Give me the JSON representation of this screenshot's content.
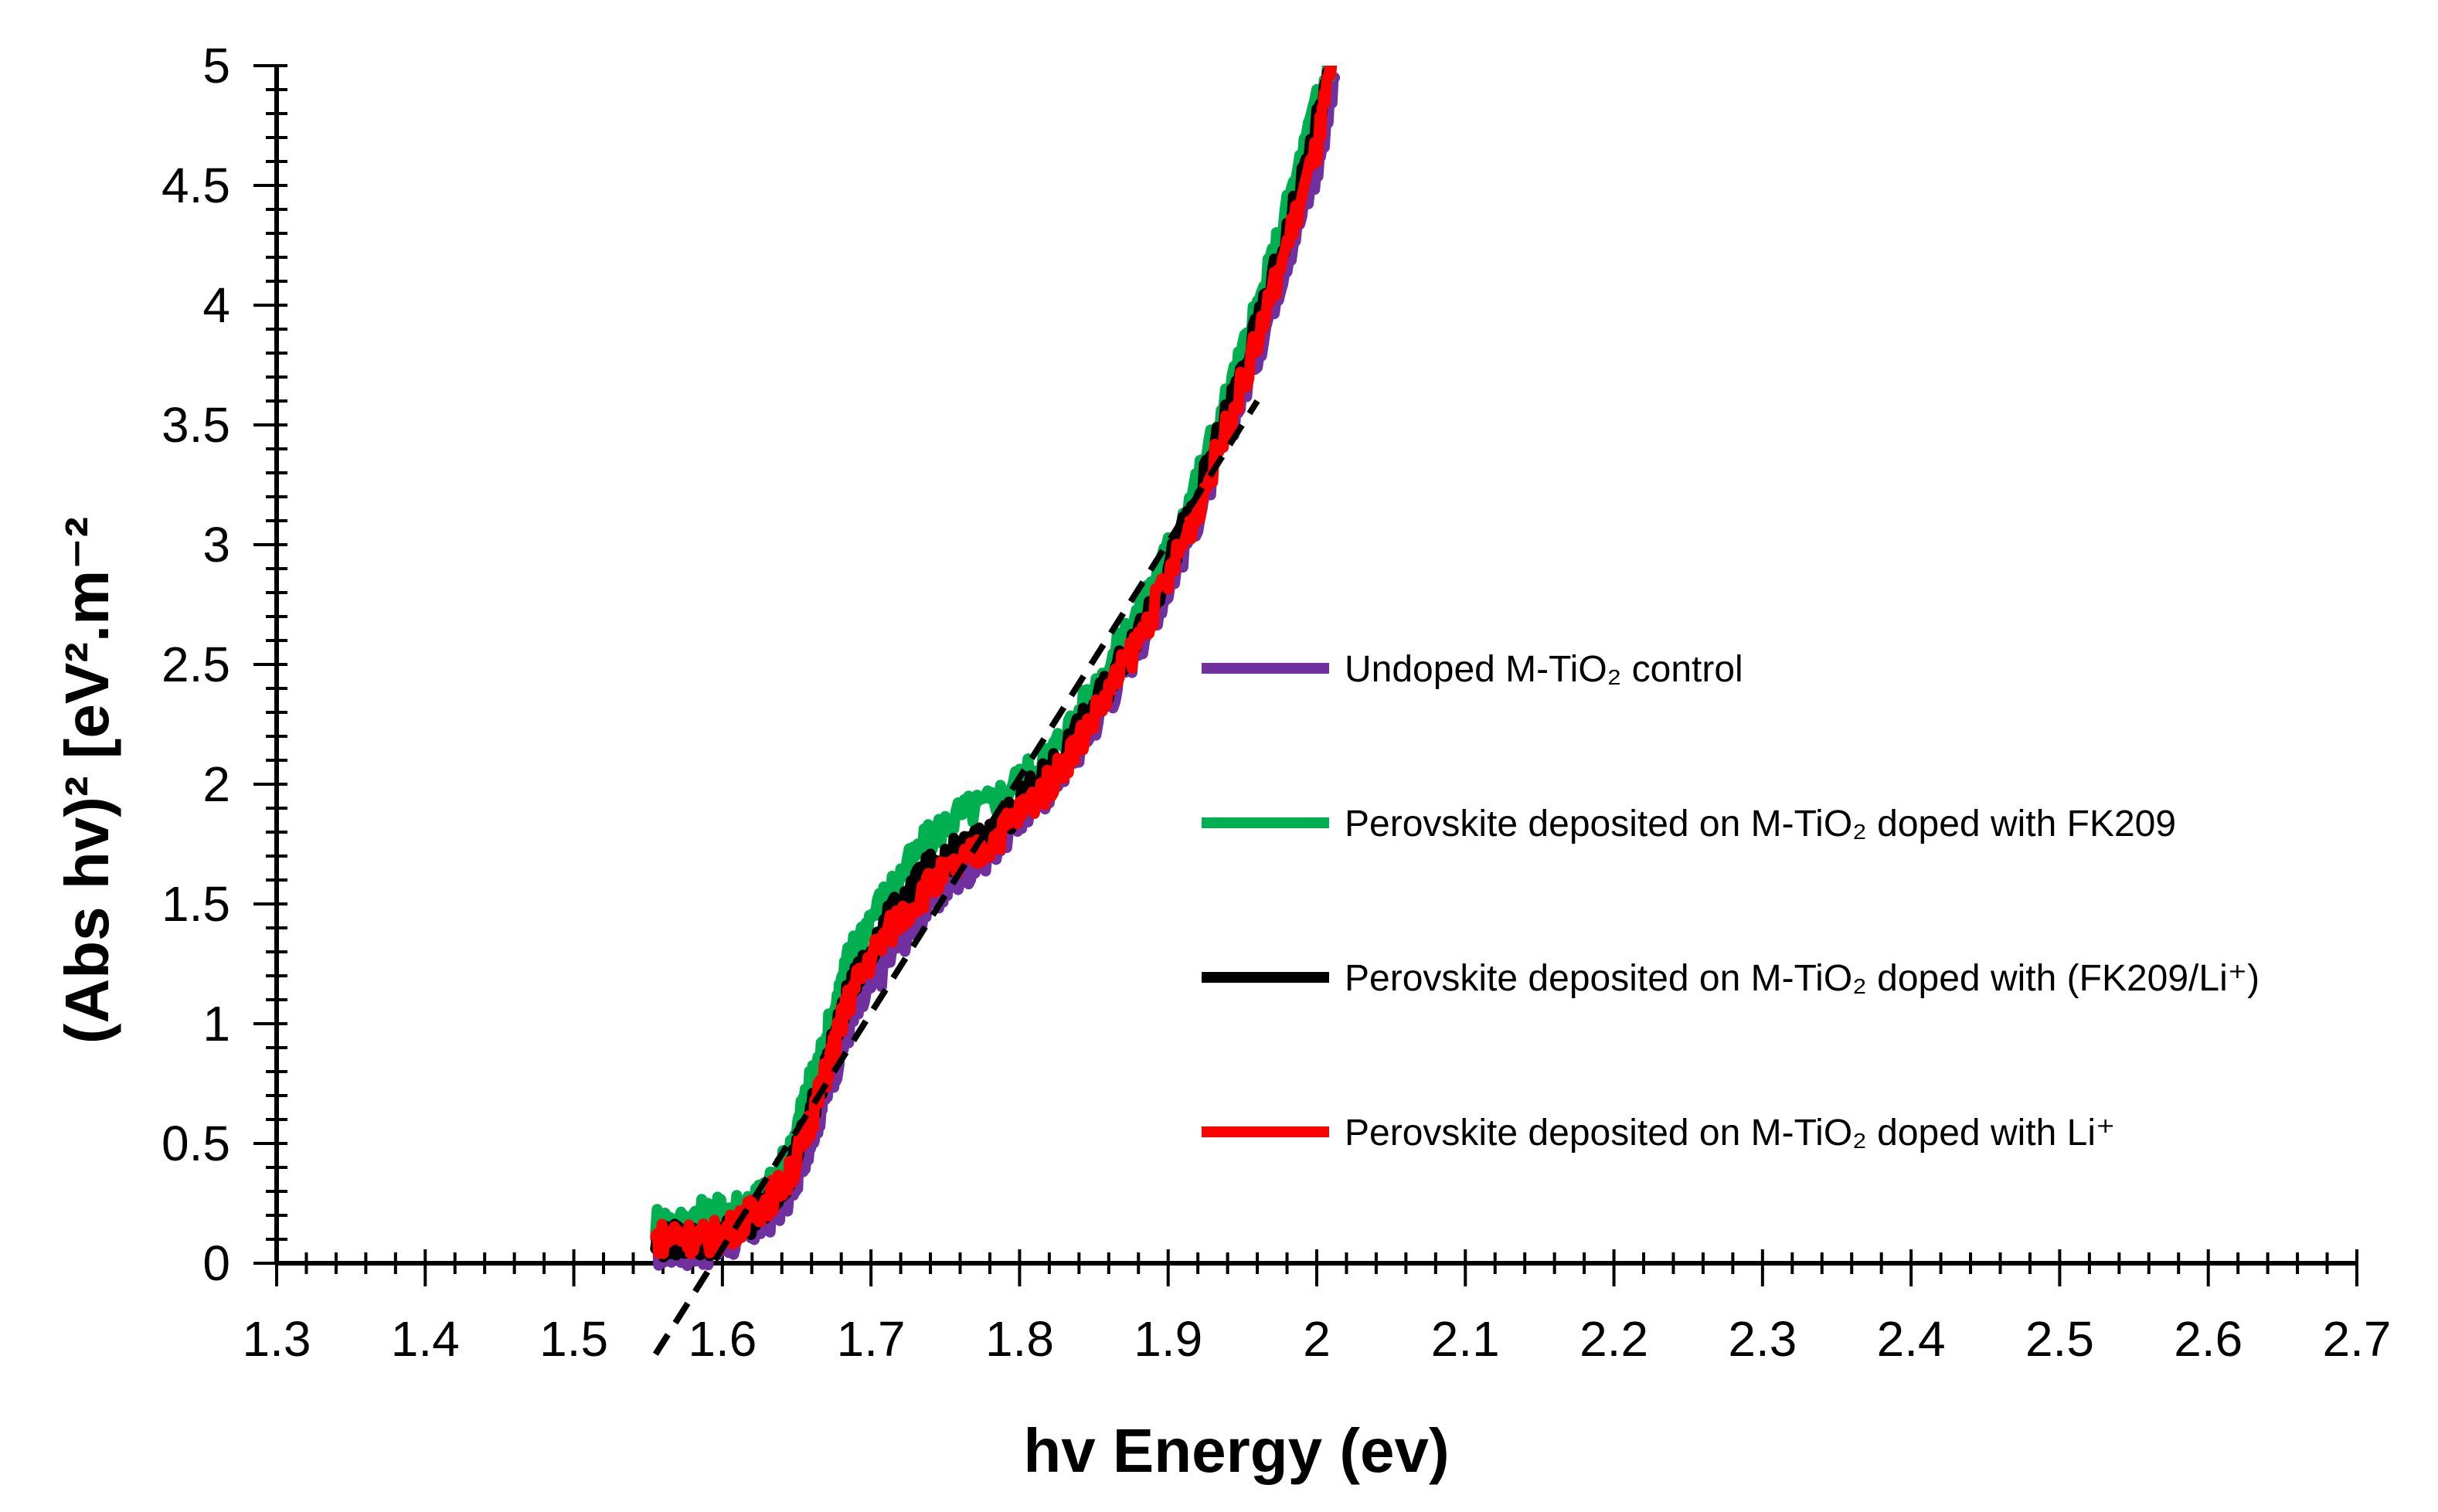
{
  "chart_data": {
    "type": "line",
    "title": "",
    "xlabel": "hv Energy (ev)",
    "ylabel": "(Abs hv)² [eV².m⁻²",
    "xlim": [
      1.3,
      2.7
    ],
    "ylim": [
      0,
      5
    ],
    "x_ticks": [
      1.3,
      1.4,
      1.5,
      1.6,
      1.7,
      1.8,
      1.9,
      2.0,
      2.1,
      2.2,
      2.3,
      2.4,
      2.5,
      2.6,
      2.7
    ],
    "x_tick_labels": [
      "1.3",
      "1.4",
      "1.5",
      "1.6",
      "1.7",
      "1.8",
      "1.9",
      "2",
      "2.1",
      "2.2",
      "2.3",
      "2.4",
      "2.5",
      "2.6",
      "2.7"
    ],
    "y_ticks": [
      0,
      0.5,
      1,
      1.5,
      2,
      2.5,
      3,
      3.5,
      4,
      4.5,
      5
    ],
    "y_tick_labels": [
      "0",
      "0.5",
      "1",
      "1.5",
      "2",
      "2.5",
      "3",
      "3.5",
      "4",
      "4.5",
      "5"
    ],
    "grid": false,
    "legend_position": "center-right",
    "series": [
      {
        "name": "Undoped M-TiO₂ control",
        "color": "#7030A0",
        "x": [
          1.555,
          1.57,
          1.585,
          1.6,
          1.615,
          1.63,
          1.645,
          1.655,
          1.665,
          1.675,
          1.685,
          1.7,
          1.72,
          1.74,
          1.76,
          1.78,
          1.8,
          1.82,
          1.84,
          1.86,
          1.88,
          1.9,
          1.92,
          1.94,
          1.96,
          1.98,
          2.0,
          2.012
        ],
        "y": [
          0.05,
          0.06,
          0.05,
          0.07,
          0.12,
          0.18,
          0.28,
          0.45,
          0.62,
          0.8,
          0.98,
          1.15,
          1.35,
          1.5,
          1.62,
          1.72,
          1.85,
          1.98,
          2.15,
          2.35,
          2.58,
          2.82,
          3.12,
          3.45,
          3.8,
          4.2,
          4.55,
          4.95
        ]
      },
      {
        "name": "Perovskite deposited on M-TiO₂ doped with FK209",
        "color": "#00B050",
        "x": [
          1.555,
          1.57,
          1.585,
          1.6,
          1.615,
          1.63,
          1.645,
          1.655,
          1.665,
          1.675,
          1.685,
          1.7,
          1.72,
          1.74,
          1.76,
          1.78,
          1.8,
          1.82,
          1.84,
          1.86,
          1.88,
          1.9,
          1.92,
          1.94,
          1.96,
          1.98,
          2.0,
          2.01
        ],
        "y": [
          0.18,
          0.16,
          0.2,
          0.22,
          0.25,
          0.3,
          0.45,
          0.68,
          0.85,
          1.05,
          1.28,
          1.45,
          1.62,
          1.78,
          1.88,
          1.92,
          2.02,
          2.12,
          2.3,
          2.5,
          2.72,
          2.98,
          3.28,
          3.62,
          3.98,
          4.4,
          4.85,
          5.0
        ]
      },
      {
        "name": "Perovskite deposited on M-TiO₂ doped with (FK209/Li⁺)",
        "color": "#000000",
        "x": [
          1.555,
          1.57,
          1.585,
          1.6,
          1.615,
          1.63,
          1.645,
          1.655,
          1.665,
          1.675,
          1.685,
          1.7,
          1.72,
          1.74,
          1.76,
          1.78,
          1.8,
          1.82,
          1.84,
          1.86,
          1.88,
          1.9,
          1.92,
          1.94,
          1.96,
          1.98,
          2.0,
          2.01
        ],
        "y": [
          0.08,
          0.1,
          0.09,
          0.11,
          0.16,
          0.24,
          0.38,
          0.55,
          0.72,
          0.92,
          1.12,
          1.32,
          1.5,
          1.65,
          1.72,
          1.78,
          1.92,
          2.05,
          2.22,
          2.42,
          2.65,
          2.9,
          3.2,
          3.55,
          3.9,
          4.3,
          4.75,
          5.0
        ]
      },
      {
        "name": "Perovskite deposited on M-TiO₂ doped with Li⁺",
        "color": "#FF0000",
        "x": [
          1.555,
          1.57,
          1.585,
          1.6,
          1.615,
          1.63,
          1.645,
          1.655,
          1.665,
          1.675,
          1.685,
          1.7,
          1.72,
          1.74,
          1.76,
          1.78,
          1.8,
          1.82,
          1.84,
          1.86,
          1.88,
          1.9,
          1.92,
          1.94,
          1.96,
          1.98,
          2.0,
          2.01
        ],
        "y": [
          0.1,
          0.12,
          0.1,
          0.12,
          0.18,
          0.26,
          0.36,
          0.52,
          0.7,
          0.9,
          1.1,
          1.28,
          1.45,
          1.58,
          1.66,
          1.75,
          1.88,
          2.0,
          2.18,
          2.38,
          2.6,
          2.86,
          3.15,
          3.5,
          3.85,
          4.25,
          4.65,
          5.0
        ]
      }
    ],
    "fit_line": {
      "style": "dashed",
      "color": "#000000",
      "x": [
        1.555,
        1.96
      ],
      "y": [
        -0.38,
        3.6
      ]
    }
  }
}
